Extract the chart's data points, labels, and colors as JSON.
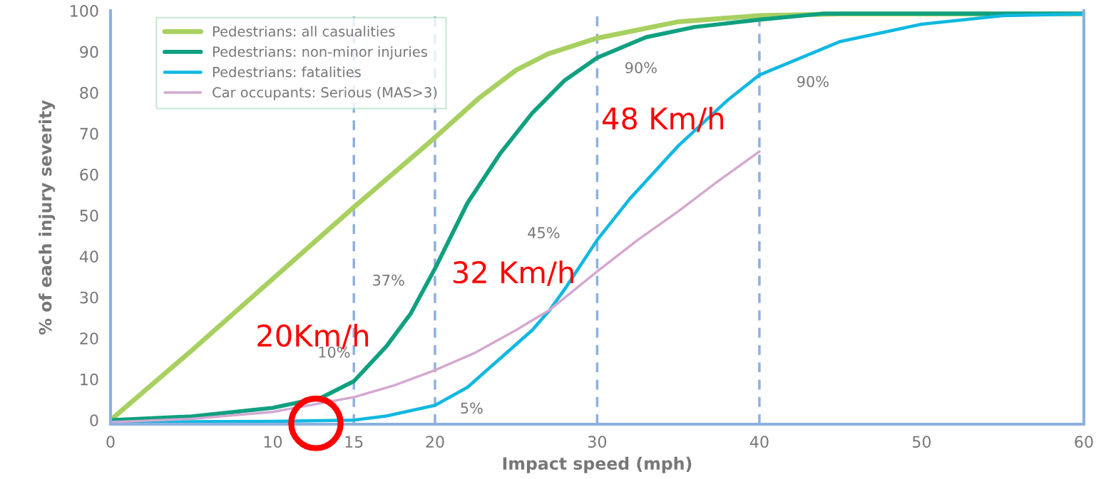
{
  "chart_data": {
    "type": "line",
    "xlabel": "Impact speed (mph)",
    "ylabel": "% of each injury severity",
    "xlim": [
      0,
      60
    ],
    "ylim": [
      -1,
      100
    ],
    "xticks": [
      0,
      10,
      15,
      20,
      30,
      40,
      50,
      60
    ],
    "yticks": [
      0,
      10,
      20,
      30,
      40,
      50,
      60,
      70,
      80,
      90,
      100
    ],
    "grid": false,
    "legend": "top left",
    "marker": "none",
    "line_style": "solid",
    "series": [
      {
        "name": "Pedestrians: all casualities",
        "color": "#a8d060",
        "x": [
          0,
          5,
          10,
          15,
          20,
          22.7,
          25,
          27,
          30,
          35,
          40,
          45,
          60
        ],
        "values": [
          0,
          17,
          34.5,
          52,
          69,
          78.6,
          85.5,
          89.5,
          93.3,
          97.3,
          98.8,
          99.2,
          99.2
        ]
      },
      {
        "name": "Pedestrians: non-minor injuries",
        "color": "#10a080",
        "x": [
          0,
          5,
          10,
          13,
          15,
          17,
          18.5,
          20,
          22,
          24,
          26,
          28,
          30,
          33,
          36,
          40,
          44,
          60
        ],
        "values": [
          0,
          0.9,
          3,
          5.5,
          9.5,
          18,
          26,
          37,
          53,
          65,
          75,
          83,
          88.5,
          93.5,
          96,
          97.8,
          99.3,
          99.3
        ]
      },
      {
        "name": "Pedestrians: fatalities",
        "color": "#10b8e0",
        "x": [
          0,
          10,
          15,
          17,
          20,
          22,
          24,
          26,
          27.1,
          28,
          30,
          32,
          35,
          38,
          40,
          45,
          50,
          55,
          60
        ],
        "values": [
          -0.5,
          -0.3,
          0,
          1,
          3.6,
          8,
          15,
          22,
          27,
          32,
          44,
          54,
          67,
          78,
          84.3,
          92.5,
          96.7,
          98.8,
          99.2
        ]
      },
      {
        "name": "Car occupants: Serious (MAS>3)",
        "color": "#d4a8d0",
        "x": [
          0,
          5,
          10,
          12.5,
          15,
          17.5,
          20,
          22.5,
          25,
          27.1,
          30,
          32.5,
          35,
          37.5,
          40
        ],
        "values": [
          -0.5,
          0.3,
          2,
          3.8,
          5.6,
          8.5,
          12.2,
          16.5,
          22,
          27,
          36.3,
          44,
          51,
          58.5,
          65.6
        ]
      }
    ],
    "ref_lines": [
      {
        "axis": "x",
        "value": 15,
        "color": "#8eb0e0",
        "line_style": "dashed"
      },
      {
        "axis": "x",
        "value": 20,
        "color": "#8eb0e0",
        "line_style": "dashed"
      },
      {
        "axis": "x",
        "value": 30,
        "color": "#8eb0e0",
        "line_style": "dashed"
      },
      {
        "axis": "x",
        "value": 40,
        "color": "#8eb0e0",
        "line_style": "dashed"
      }
    ],
    "annotations": [
      {
        "text": "10%",
        "x": 15,
        "y": 10
      },
      {
        "text": "37%",
        "x": 20,
        "y": 37
      },
      "5%",
      {
        "text": "45%",
        "x": 30,
        "y": 44
      },
      "90%",
      {
        "text": "90%",
        "x": 40,
        "y": 84.3
      },
      "20Km/h",
      "32 Km/h",
      "48 Km/h"
    ]
  }
}
